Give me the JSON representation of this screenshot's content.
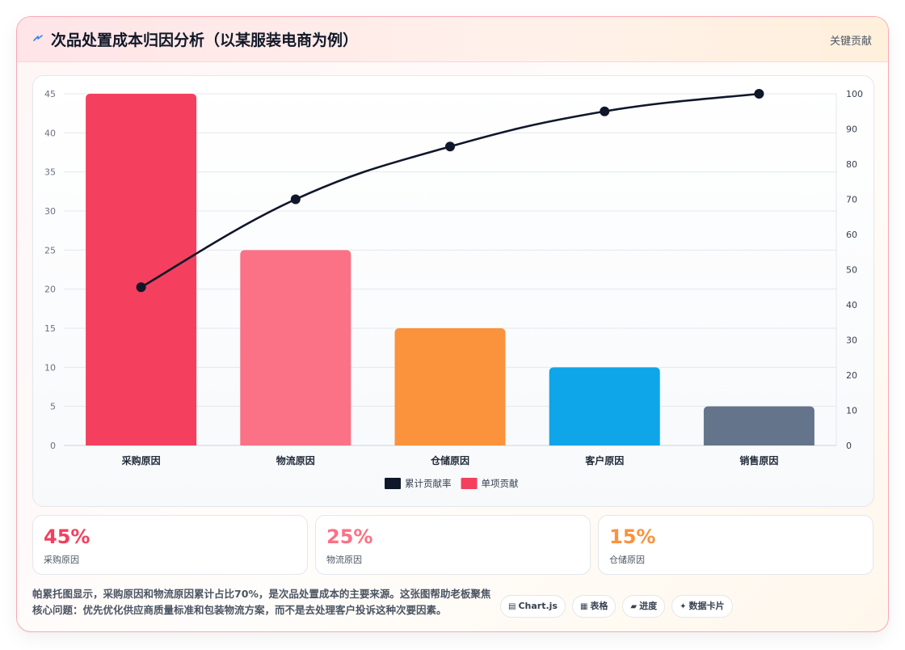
{
  "header": {
    "title": "次品处置成本归因分析（以某服装电商为例）",
    "tag": "关键贡献",
    "icon": "lightning-bolt-icon"
  },
  "chart_data": {
    "type": "bar",
    "title": "",
    "categories": [
      "采购原因",
      "物流原因",
      "仓储原因",
      "客户原因",
      "销售原因"
    ],
    "series": [
      {
        "name": "单项贡献",
        "type": "bar",
        "axis": "left",
        "values": [
          45,
          25,
          15,
          10,
          5
        ],
        "colors": [
          "#f43f5e",
          "#fb7185",
          "#fb923c",
          "#0ea5e9",
          "#64748b"
        ]
      },
      {
        "name": "累计贡献率",
        "type": "line",
        "axis": "right",
        "values": [
          45,
          70,
          85,
          95,
          100
        ],
        "color": "#0f172a"
      }
    ],
    "y_left": {
      "min": 0,
      "max": 45,
      "step": 5
    },
    "y_right": {
      "min": 0,
      "max": 100,
      "step": 10
    },
    "grid": true,
    "legend": {
      "position": "bottom",
      "entries": [
        {
          "label": "累计贡献率",
          "color": "#0f172a"
        },
        {
          "label": "单项贡献",
          "color": "#f43f5e"
        }
      ]
    }
  },
  "stats": [
    {
      "value": "45%",
      "label": "采购原因",
      "color": "#f43f5e"
    },
    {
      "value": "25%",
      "label": "物流原因",
      "color": "#fb7185"
    },
    {
      "value": "15%",
      "label": "仓储原因",
      "color": "#fb923c"
    }
  ],
  "footer": {
    "text": "帕累托图显示，采购原因和物流原因累计占比70%，是次品处置成本的主要来源。这张图帮助老板聚焦核心问题：优先优化供应商质量标准和包装物流方案，而不是去处理客户投诉这种次要因素。"
  },
  "chips": [
    {
      "icon": "▤",
      "label": "Chart.js",
      "icon_name": "chart-icon"
    },
    {
      "icon": "▦",
      "label": "表格",
      "icon_name": "table-icon"
    },
    {
      "icon": "▰",
      "label": "进度",
      "icon_name": "progress-icon"
    },
    {
      "icon": "✦",
      "label": "数据卡片",
      "icon_name": "sparkle-icon"
    }
  ]
}
